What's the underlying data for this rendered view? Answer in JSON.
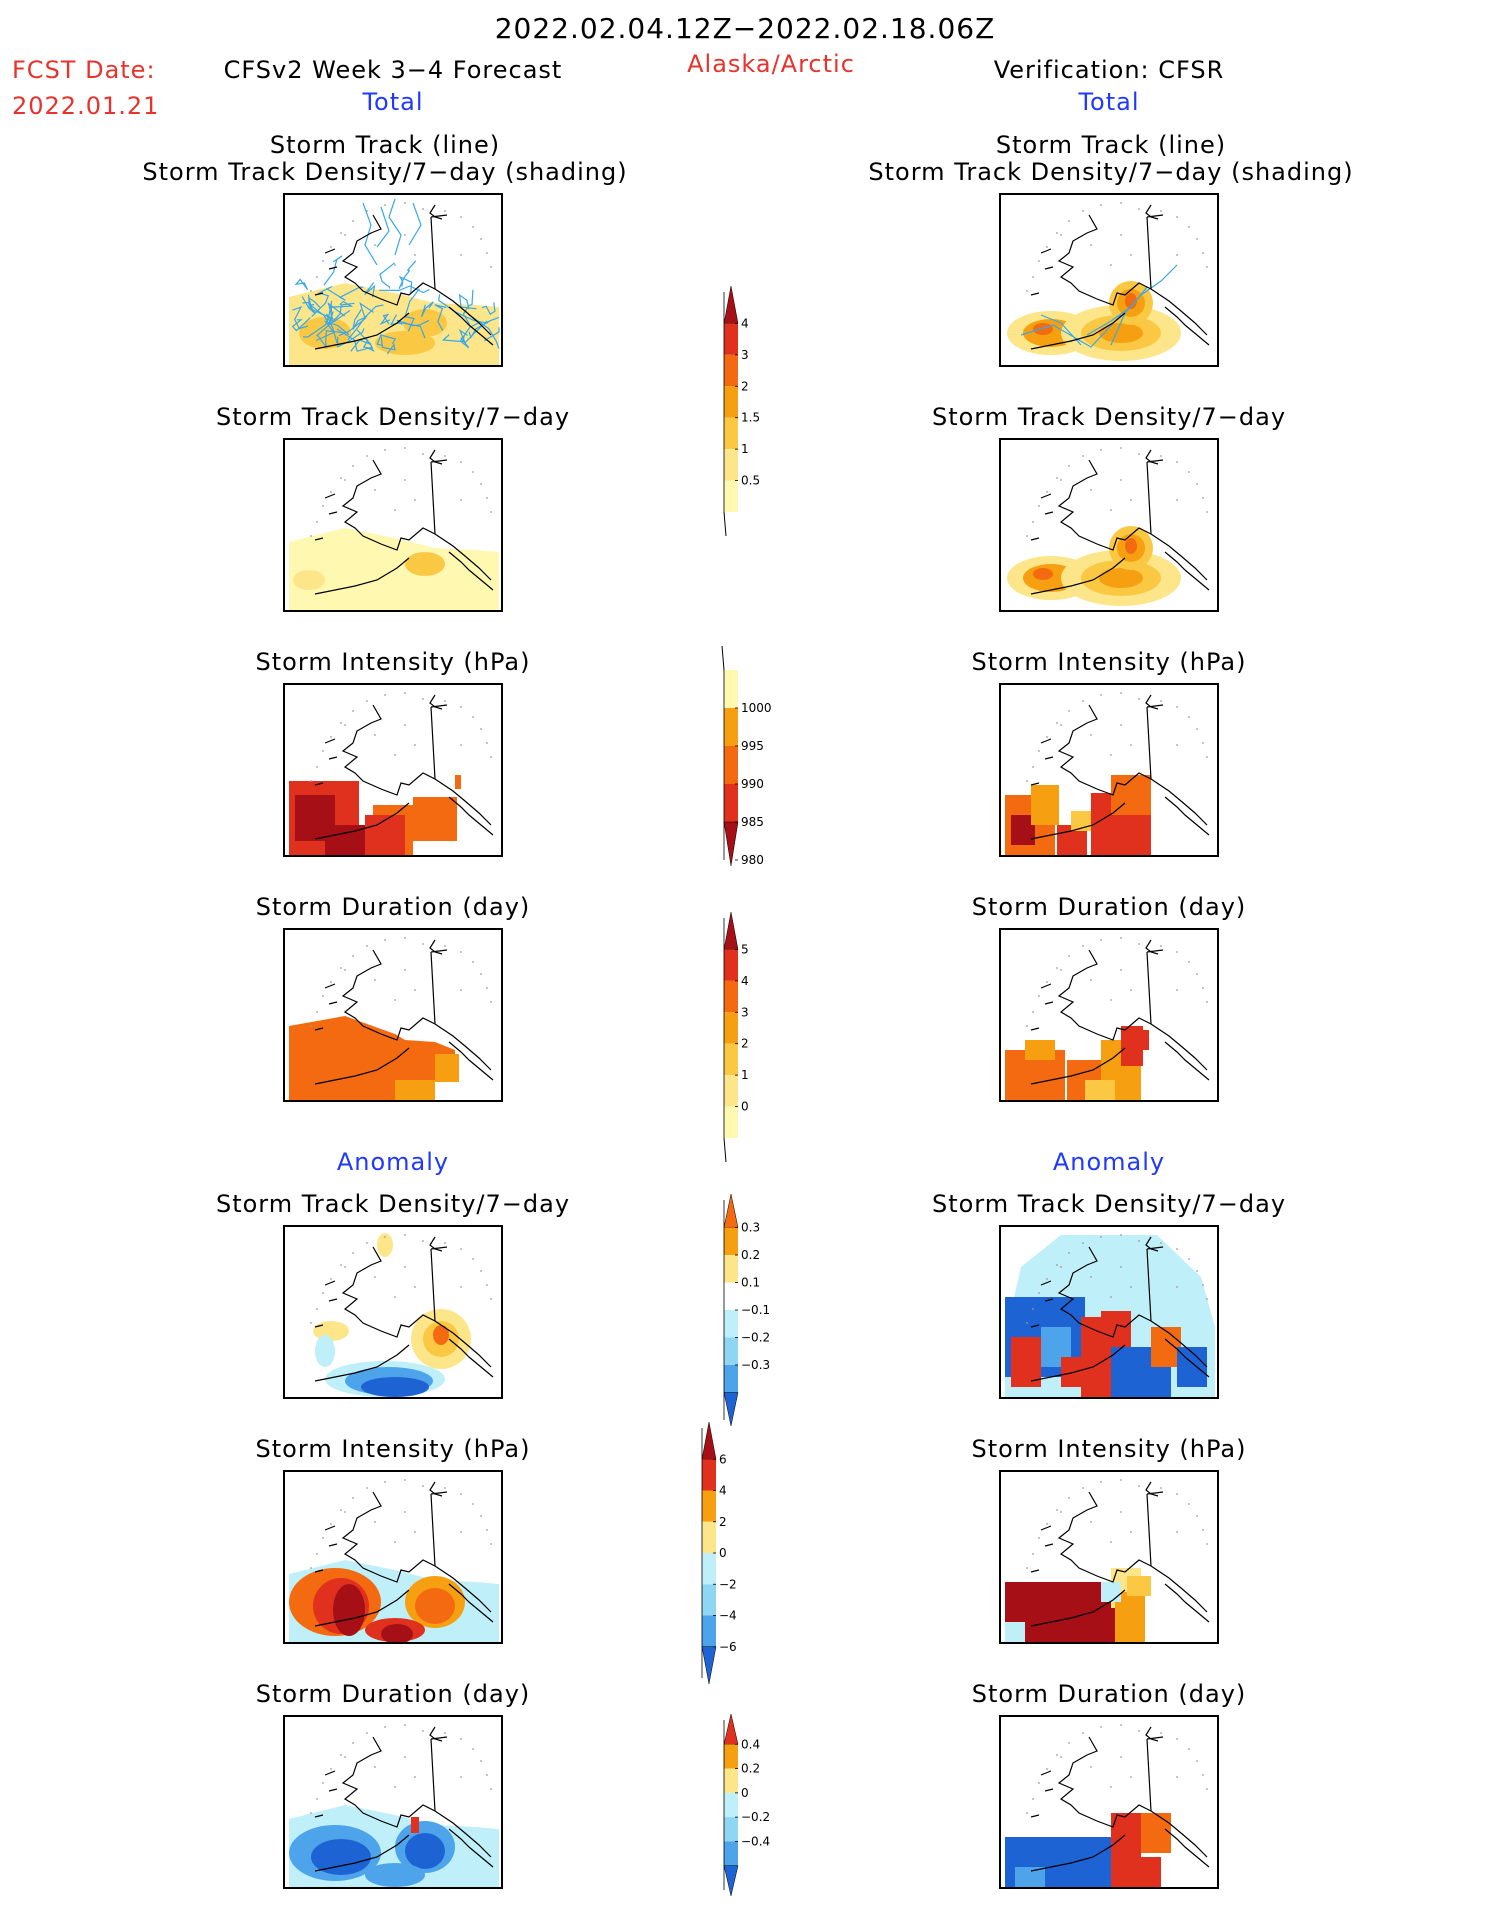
{
  "header": {
    "period": "2022.02.04.12Z−2022.02.18.06Z",
    "fcst_label": "FCST Date:",
    "fcst_date": "2022.01.21",
    "model": "CFSv2 Week 3−4 Forecast",
    "region": "Alaska/Arctic",
    "verification": "Verification: CFSR",
    "left_sub": "Total",
    "right_sub": "Total",
    "anomaly_left": "Anomaly",
    "anomaly_right": "Anomaly"
  },
  "panel_titles": {
    "track_line": "Storm Track (line)",
    "track_shading": "Storm Track Density/7−day (shading)",
    "density": "Storm Track Density/7−day",
    "intensity": "Storm Intensity (hPa)",
    "duration": "Storm Duration (day)"
  },
  "colors": {
    "c1": "#fff8b0",
    "c2": "#fde68a",
    "c3": "#fbc843",
    "c4": "#f6a011",
    "c5": "#f46a10",
    "c6": "#e0301e",
    "c7": "#a50f15",
    "b1": "#bfeff8",
    "b2": "#8fd6f2",
    "b3": "#4ea4ea",
    "b4": "#1d63d4",
    "track": "#38a8e8"
  },
  "chart_data": [
    {
      "type": "heatmap",
      "column": "CFSv2",
      "panel": "Storm Track (line) + Storm Track Density/7-day (shading)",
      "levels": [
        "0.5",
        "1",
        "1.5",
        "2",
        "3",
        "4"
      ]
    },
    {
      "type": "heatmap",
      "column": "CFSR",
      "panel": "Storm Track (line) + Storm Track Density/7-day (shading)",
      "levels": [
        "0.5",
        "1",
        "1.5",
        "2",
        "3",
        "4"
      ]
    },
    {
      "type": "heatmap",
      "column": "CFSv2",
      "panel": "Storm Track Density/7-day",
      "levels": [
        "0.5",
        "1",
        "1.5",
        "2",
        "3",
        "4"
      ]
    },
    {
      "type": "heatmap",
      "column": "CFSR",
      "panel": "Storm Track Density/7-day",
      "levels": [
        "0.5",
        "1",
        "1.5",
        "2",
        "3",
        "4"
      ]
    },
    {
      "type": "heatmap",
      "column": "CFSv2",
      "panel": "Storm Intensity (hPa)",
      "levels": [
        "1000",
        "995",
        "990",
        "985",
        "980"
      ]
    },
    {
      "type": "heatmap",
      "column": "CFSR",
      "panel": "Storm Intensity (hPa)",
      "levels": [
        "1000",
        "995",
        "990",
        "985",
        "980"
      ]
    },
    {
      "type": "heatmap",
      "column": "CFSv2",
      "panel": "Storm Duration (day)",
      "levels": [
        "0",
        "1",
        "2",
        "3",
        "4",
        "5"
      ]
    },
    {
      "type": "heatmap",
      "column": "CFSR",
      "panel": "Storm Duration (day)",
      "levels": [
        "0",
        "1",
        "2",
        "3",
        "4",
        "5"
      ]
    },
    {
      "type": "heatmap",
      "column": "CFSv2",
      "panel": "Anomaly Storm Track Density/7-day",
      "levels": [
        "0.3",
        "0.2",
        "0.1",
        "−0.1",
        "−0.2",
        "−0.3"
      ]
    },
    {
      "type": "heatmap",
      "column": "CFSR",
      "panel": "Anomaly Storm Track Density/7-day",
      "levels": [
        "0.3",
        "0.2",
        "0.1",
        "−0.1",
        "−0.2",
        "−0.3"
      ]
    },
    {
      "type": "heatmap",
      "column": "CFSv2",
      "panel": "Anomaly Storm Intensity (hPa)",
      "levels": [
        "6",
        "4",
        "2",
        "0",
        "−2",
        "−4",
        "−6"
      ]
    },
    {
      "type": "heatmap",
      "column": "CFSR",
      "panel": "Anomaly Storm Intensity (hPa)",
      "levels": [
        "6",
        "4",
        "2",
        "0",
        "−2",
        "−4",
        "−6"
      ]
    },
    {
      "type": "heatmap",
      "column": "CFSv2",
      "panel": "Anomaly Storm Duration (day)",
      "levels": [
        "0.4",
        "0.2",
        "0",
        "−0.2",
        "−0.4"
      ]
    },
    {
      "type": "heatmap",
      "column": "CFSR",
      "panel": "Anomaly Storm Duration (day)",
      "levels": [
        "0.4",
        "0.2",
        "0",
        "−0.2",
        "−0.4"
      ]
    }
  ],
  "colorbars": {
    "density": {
      "labels": [
        "4",
        "3",
        "2",
        "1.5",
        "1",
        "0.5"
      ]
    },
    "intensity": {
      "labels": [
        "1000",
        "995",
        "990",
        "985",
        "980"
      ]
    },
    "duration": {
      "labels": [
        "5",
        "4",
        "3",
        "2",
        "1",
        "0"
      ]
    },
    "anom_density": {
      "labels": [
        "0.3",
        "0.2",
        "0.1",
        "−0.1",
        "−0.2",
        "−0.3"
      ]
    },
    "anom_intensity": {
      "labels": [
        "6",
        "4",
        "2",
        "0",
        "−2",
        "−4",
        "−6"
      ]
    },
    "anom_duration": {
      "labels": [
        "0.4",
        "0.2",
        "0",
        "−0.2",
        "−0.4"
      ]
    }
  }
}
